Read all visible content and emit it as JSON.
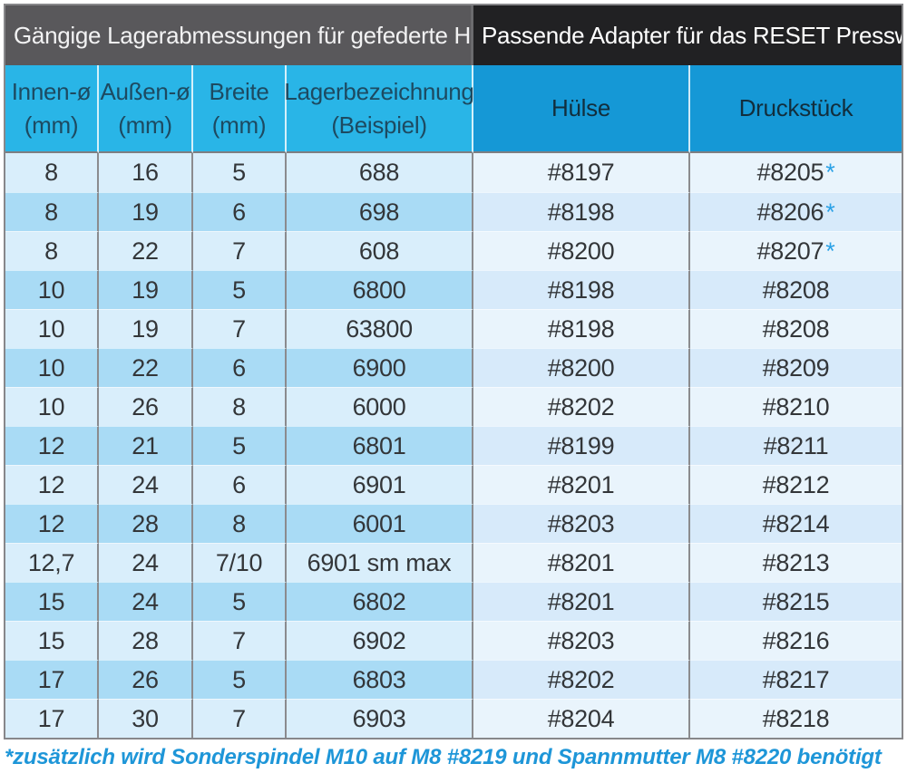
{
  "header": {
    "left_title": "Gängige Lagerabmessungen für gefederte Hinterbauten:",
    "right_title": "Passende Adapter für das RESET Presswerk:"
  },
  "columns": [
    {
      "label": "Innen-ø",
      "sub": "(mm)"
    },
    {
      "label": "Außen-ø",
      "sub": "(mm)"
    },
    {
      "label": "Breite",
      "sub": "(mm)"
    },
    {
      "label": "Lagerbezeichnung",
      "sub": "(Beispiel)"
    },
    {
      "label": "Hülse"
    },
    {
      "label": "Druckstück"
    }
  ],
  "rows": [
    {
      "innen": "8",
      "aussen": "16",
      "breite": "5",
      "lager": "688",
      "huelse": "#8197",
      "druckstueck": "#8205",
      "star": true
    },
    {
      "innen": "8",
      "aussen": "19",
      "breite": "6",
      "lager": "698",
      "huelse": "#8198",
      "druckstueck": "#8206",
      "star": true
    },
    {
      "innen": "8",
      "aussen": "22",
      "breite": "7",
      "lager": "608",
      "huelse": "#8200",
      "druckstueck": "#8207",
      "star": true
    },
    {
      "innen": "10",
      "aussen": "19",
      "breite": "5",
      "lager": "6800",
      "huelse": "#8198",
      "druckstueck": "#8208",
      "star": false
    },
    {
      "innen": "10",
      "aussen": "19",
      "breite": "7",
      "lager": "63800",
      "huelse": "#8198",
      "druckstueck": "#8208",
      "star": false
    },
    {
      "innen": "10",
      "aussen": "22",
      "breite": "6",
      "lager": "6900",
      "huelse": "#8200",
      "druckstueck": "#8209",
      "star": false
    },
    {
      "innen": "10",
      "aussen": "26",
      "breite": "8",
      "lager": "6000",
      "huelse": "#8202",
      "druckstueck": "#8210",
      "star": false
    },
    {
      "innen": "12",
      "aussen": "21",
      "breite": "5",
      "lager": "6801",
      "huelse": "#8199",
      "druckstueck": "#8211",
      "star": false
    },
    {
      "innen": "12",
      "aussen": "24",
      "breite": "6",
      "lager": "6901",
      "huelse": "#8201",
      "druckstueck": "#8212",
      "star": false
    },
    {
      "innen": "12",
      "aussen": "28",
      "breite": "8",
      "lager": "6001",
      "huelse": "#8203",
      "druckstueck": "#8214",
      "star": false
    },
    {
      "innen": "12,7",
      "aussen": "24",
      "breite": "7/10",
      "lager": "6901 sm max",
      "huelse": "#8201",
      "druckstueck": "#8213",
      "star": false
    },
    {
      "innen": "15",
      "aussen": "24",
      "breite": "5",
      "lager": "6802",
      "huelse": "#8201",
      "druckstueck": "#8215",
      "star": false
    },
    {
      "innen": "15",
      "aussen": "28",
      "breite": "7",
      "lager": "6902",
      "huelse": "#8203",
      "druckstueck": "#8216",
      "star": false
    },
    {
      "innen": "17",
      "aussen": "26",
      "breite": "5",
      "lager": "6803",
      "huelse": "#8202",
      "druckstueck": "#8217",
      "star": false
    },
    {
      "innen": "17",
      "aussen": "30",
      "breite": "7",
      "lager": "6903",
      "huelse": "#8204",
      "druckstueck": "#8218",
      "star": false
    }
  ],
  "star_symbol": "*",
  "footnote": "*zusätzlich wird Sonderspindel M10 auf M8 #8219 und Spannmutter M8 #8220 benötigt",
  "colors": {
    "header-left-bg": "#59585b",
    "header-right-bg": "#212123",
    "cyan": "#29b5e7",
    "blue": "#1598d6",
    "left-light": "#d9eefb",
    "left-dark": "#a9dbf5",
    "right-light": "#e9f4fc",
    "right-dark": "#d7eafa",
    "header-text-left": "#1d4a61",
    "header-text-right": "#122e3d",
    "data-text": "#333639",
    "star": "#2aa1e6",
    "footnote": "#1e96d8",
    "grid-line": "#8b8b8e",
    "table-border": "#87878a"
  }
}
